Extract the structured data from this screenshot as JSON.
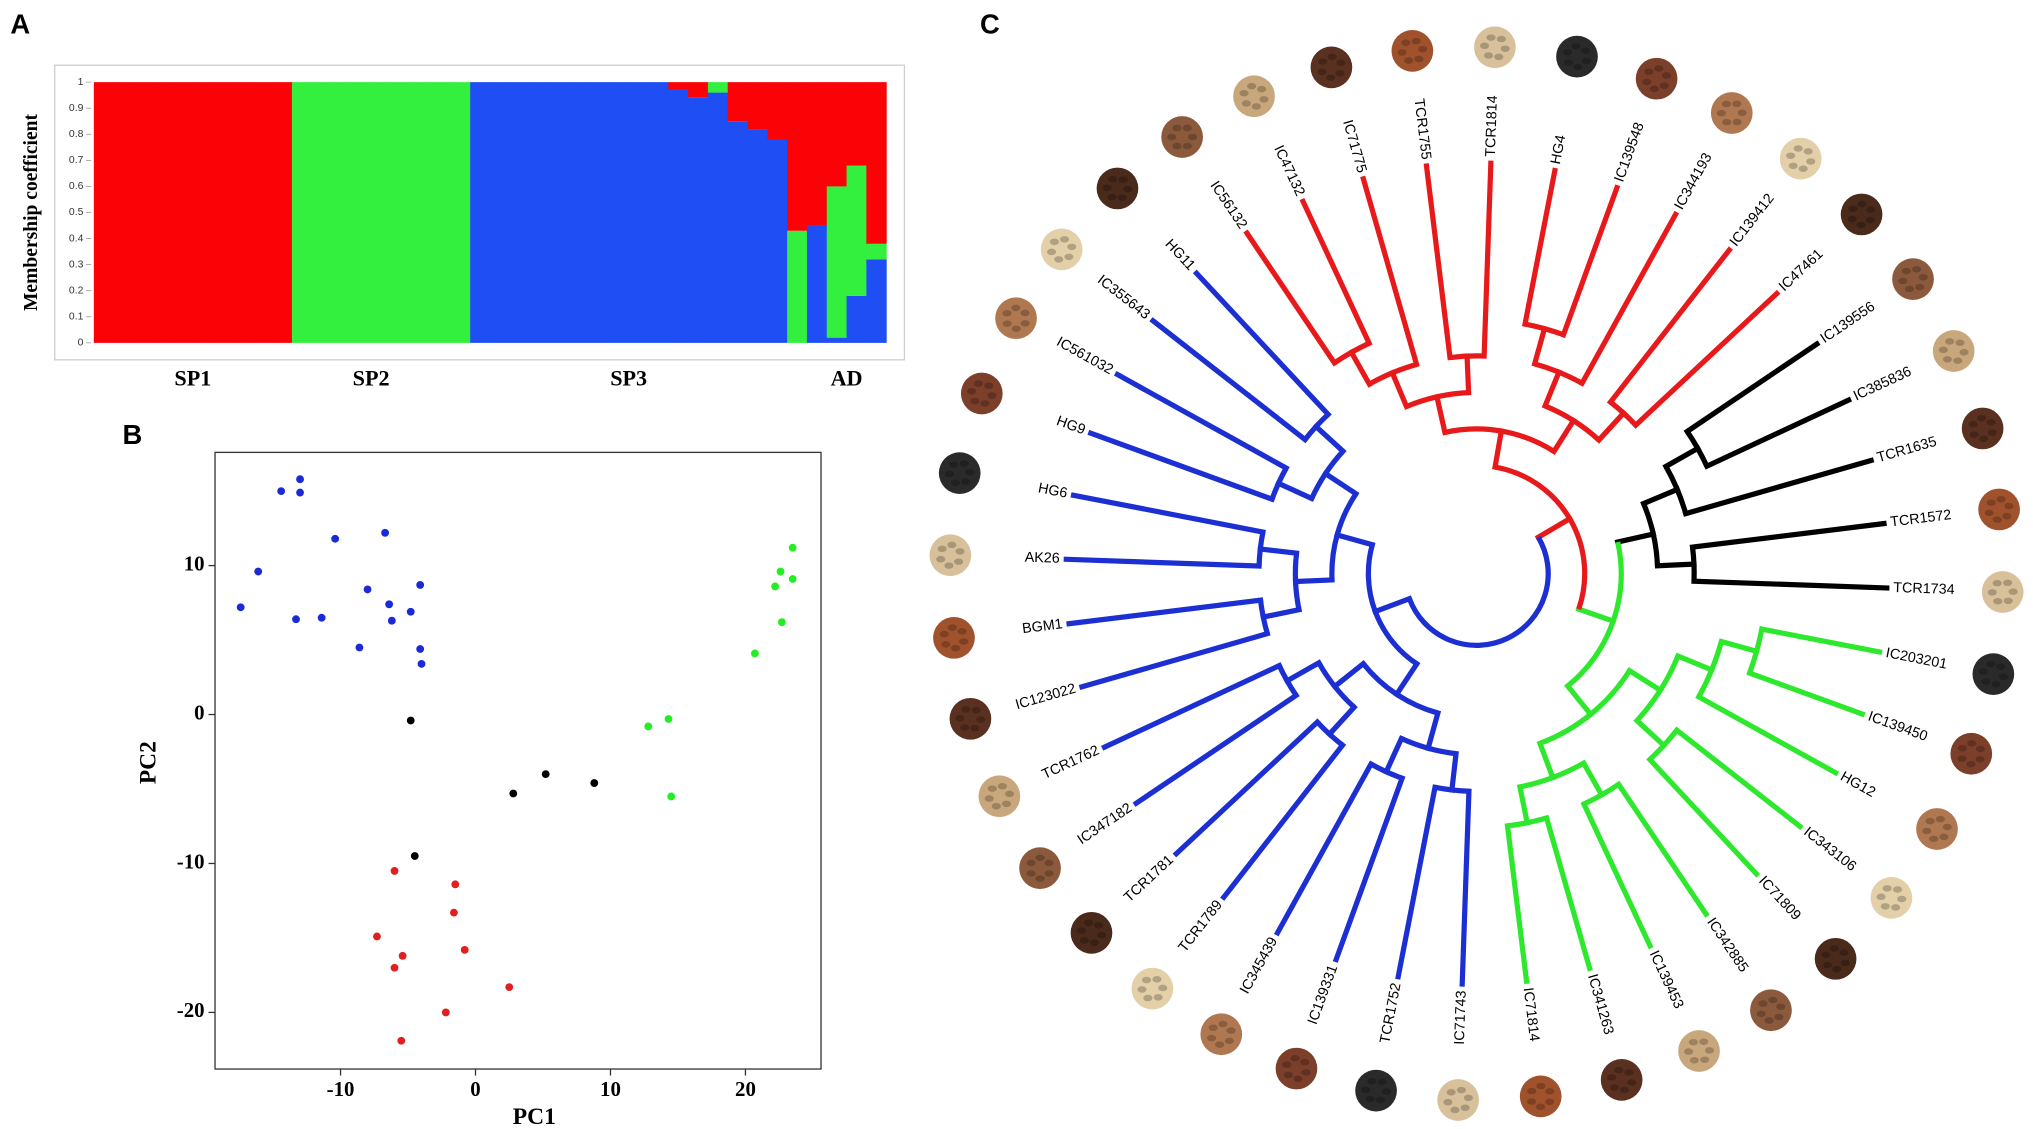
{
  "chart_data": [
    {
      "panel": "A",
      "type": "stacked_bar",
      "ylabel": "Membership coefficient",
      "categories": [
        null,
        null,
        null,
        null,
        null,
        "SP1",
        null,
        null,
        null,
        null,
        null,
        null,
        null,
        null,
        "SP2",
        null,
        null,
        null,
        null,
        null,
        null,
        null,
        null,
        null,
        null,
        null,
        null,
        "SP3",
        null,
        null,
        null,
        null,
        null,
        null,
        null,
        null,
        null,
        null,
        "AD",
        null
      ],
      "series": [
        {
          "color": "#1f4ef5",
          "values": [
            0,
            0,
            0,
            0,
            0,
            0,
            0,
            0,
            0,
            0,
            0,
            0,
            0,
            0,
            0,
            0,
            0,
            0,
            0,
            1,
            1,
            1,
            1,
            1,
            1,
            1,
            1,
            1,
            1,
            0.97,
            0.94,
            0.96,
            0.85,
            0.82,
            0.78,
            0,
            0.45,
            0.02,
            0.18,
            0.32
          ]
        },
        {
          "color": "#33ef3e",
          "values": [
            0,
            0,
            0,
            0,
            0,
            0,
            0,
            0,
            0,
            0,
            1,
            1,
            1,
            1,
            1,
            1,
            1,
            1,
            1,
            0,
            0,
            0,
            0,
            0,
            0,
            0,
            0,
            0,
            0,
            0,
            0,
            0.04,
            0,
            0,
            0,
            0.43,
            0,
            0.58,
            0.5,
            0.06
          ]
        },
        {
          "color": "#fb0206",
          "values": [
            1,
            1,
            1,
            1,
            1,
            1,
            1,
            1,
            1,
            1,
            0,
            0,
            0,
            0,
            0,
            0,
            0,
            0,
            0,
            0,
            0,
            0,
            0,
            0,
            0,
            0,
            0,
            0,
            0,
            0.03,
            0.06,
            0,
            0.15,
            0.18,
            0.22,
            0.57,
            0.55,
            0.4,
            0.32,
            0.62
          ]
        }
      ],
      "ylim": [
        0,
        1
      ],
      "yticks": [
        0,
        0.1,
        0.2,
        0.3,
        0.4,
        0.5,
        0.6,
        0.7,
        0.8,
        0.9,
        1
      ]
    },
    {
      "panel": "B",
      "type": "scatter",
      "xlabel": "PC1",
      "ylabel": "PC2",
      "xlim": [
        -19.3,
        25.6
      ],
      "ylim": [
        -23.8,
        17.6
      ],
      "xticks": [
        -10,
        0,
        10,
        20
      ],
      "yticks": [
        -20,
        -10,
        0,
        10
      ],
      "series": [
        {
          "color": "#1a2ad6",
          "x": [
            -17.4,
            -16.1,
            -14.4,
            -13.0,
            -13.0,
            -13.3,
            -11.4,
            -10.4,
            -8.6,
            -8.0,
            -6.7,
            -6.4,
            -6.2,
            -4.8,
            -4.1,
            -4.1,
            -4.0
          ],
          "y": [
            7.2,
            9.6,
            15.0,
            15.8,
            14.9,
            6.4,
            6.5,
            11.8,
            4.5,
            8.4,
            12.2,
            7.4,
            6.3,
            6.9,
            8.7,
            4.4,
            3.4
          ]
        },
        {
          "color": "#000000",
          "x": [
            -4.8,
            2.8,
            5.2,
            8.8,
            -4.5
          ],
          "y": [
            -0.4,
            -5.3,
            -4.0,
            -4.6,
            -9.5
          ]
        },
        {
          "color": "#22ee22",
          "x": [
            20.7,
            12.8,
            14.3,
            14.5,
            22.2,
            22.7,
            22.6,
            23.5,
            23.5
          ],
          "y": [
            4.1,
            -0.8,
            -0.3,
            -5.5,
            8.6,
            6.2,
            9.6,
            11.2,
            9.1
          ]
        },
        {
          "color": "#e02020",
          "x": [
            -6.0,
            -1.5,
            -1.6,
            -7.3,
            -0.8,
            -5.4,
            -6.0,
            2.5,
            -2.2,
            -5.5
          ],
          "y": [
            -10.5,
            -11.4,
            -13.3,
            -14.9,
            -15.8,
            -16.2,
            -17.0,
            -18.3,
            -20.0,
            -21.9
          ]
        }
      ]
    },
    {
      "panel": "C",
      "type": "dendrogram",
      "clades": [
        {
          "color": "#e8191b",
          "leaves": [
            "IC56132",
            "IC47132",
            "IC71775",
            "TCR1755",
            "TCR1814",
            "HG4",
            "IC139548",
            "IC344193",
            "IC139412",
            "IC47461"
          ]
        },
        {
          "color": "#000000",
          "leaves": [
            "IC139556",
            "IC385836",
            "TCR1635",
            "TCR1572",
            "TCR1734"
          ]
        },
        {
          "color": "#2ee82e",
          "leaves": [
            "IC203201",
            "IC139450",
            "HG12",
            "IC343106",
            "IC71809",
            "IC342885",
            "IC139453",
            "IC341263",
            "IC71814"
          ]
        },
        {
          "color": "#1c2fd2",
          "leaves": [
            "IC71743",
            "TCR1752",
            "IC139331",
            "IC345439",
            "TCR1789",
            "TCR1781",
            "IC347182",
            "TCR1762",
            "IC123022",
            "BGM1",
            "AK26",
            "HG6",
            "HG9",
            "IC561032",
            "IC355643",
            "HG11"
          ]
        }
      ]
    }
  ]
}
